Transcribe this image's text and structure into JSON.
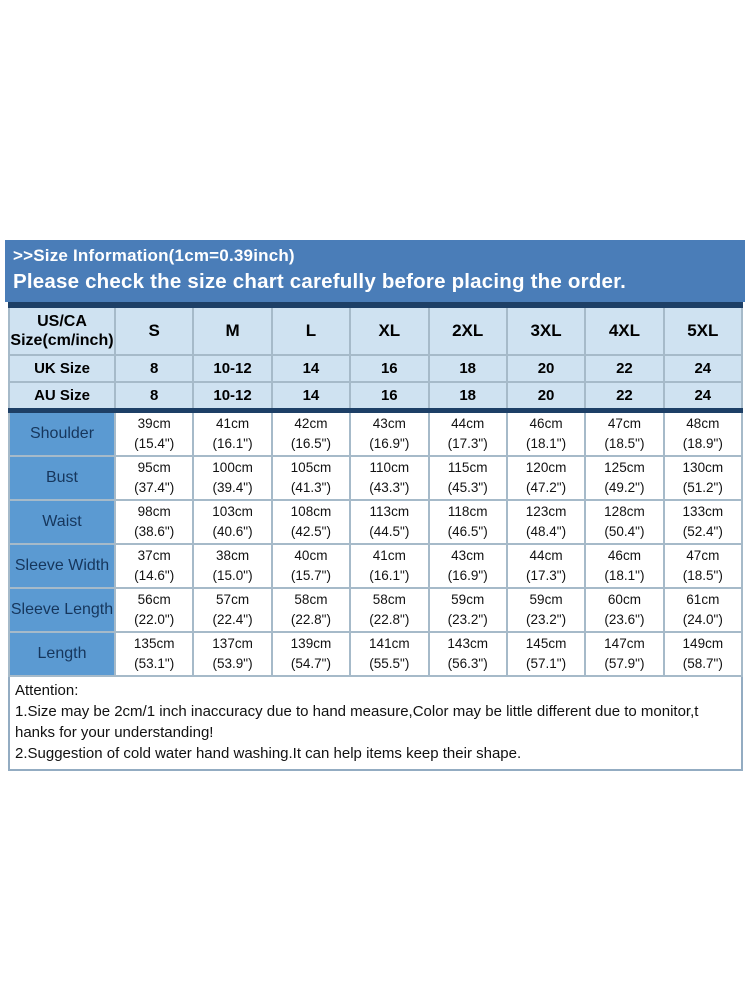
{
  "header": {
    "line1": ">>Size Information(1cm=0.39inch)",
    "line2": "Please check the size chart carefully before placing the order."
  },
  "size_table": {
    "corner_label_line1": "US/CA",
    "corner_label_line2": "Size(cm/inch)",
    "size_columns": [
      "S",
      "M",
      "L",
      "XL",
      "2XL",
      "3XL",
      "4XL",
      "5XL"
    ],
    "conversion_rows": [
      {
        "label": "UK Size",
        "values": [
          "8",
          "10-12",
          "14",
          "16",
          "18",
          "20",
          "22",
          "24"
        ]
      },
      {
        "label": "AU Size",
        "values": [
          "8",
          "10-12",
          "14",
          "16",
          "18",
          "20",
          "22",
          "24"
        ]
      }
    ],
    "measurement_rows": [
      {
        "label": "Shoulder",
        "cm": [
          "39cm",
          "41cm",
          "42cm",
          "43cm",
          "44cm",
          "46cm",
          "47cm",
          "48cm"
        ],
        "inch": [
          "(15.4\")",
          "(16.1\")",
          "(16.5\")",
          "(16.9\")",
          "(17.3\")",
          "(18.1\")",
          "(18.5\")",
          "(18.9\")"
        ]
      },
      {
        "label": "Bust",
        "cm": [
          "95cm",
          "100cm",
          "105cm",
          "110cm",
          "115cm",
          "120cm",
          "125cm",
          "130cm"
        ],
        "inch": [
          "(37.4\")",
          "(39.4\")",
          "(41.3\")",
          "(43.3\")",
          "(45.3\")",
          "(47.2\")",
          "(49.2\")",
          "(51.2\")"
        ]
      },
      {
        "label": "Waist",
        "cm": [
          "98cm",
          "103cm",
          "108cm",
          "113cm",
          "118cm",
          "123cm",
          "128cm",
          "133cm"
        ],
        "inch": [
          "(38.6\")",
          "(40.6\")",
          "(42.5\")",
          "(44.5\")",
          "(46.5\")",
          "(48.4\")",
          "(50.4\")",
          "(52.4\")"
        ]
      },
      {
        "label": "Sleeve Width",
        "cm": [
          "37cm",
          "38cm",
          "40cm",
          "41cm",
          "43cm",
          "44cm",
          "46cm",
          "47cm"
        ],
        "inch": [
          "(14.6\")",
          "(15.0\")",
          "(15.7\")",
          "(16.1\")",
          "(16.9\")",
          "(17.3\")",
          "(18.1\")",
          "(18.5\")"
        ]
      },
      {
        "label": "Sleeve Length",
        "cm": [
          "56cm",
          "57cm",
          "58cm",
          "58cm",
          "59cm",
          "59cm",
          "60cm",
          "61cm"
        ],
        "inch": [
          "(22.0\")",
          "(22.4\")",
          "(22.8\")",
          "(22.8\")",
          "(23.2\")",
          "(23.2\")",
          "(23.6\")",
          "(24.0\")"
        ]
      },
      {
        "label": "Length",
        "cm": [
          "135cm",
          "137cm",
          "139cm",
          "141cm",
          "143cm",
          "145cm",
          "147cm",
          "149cm"
        ],
        "inch": [
          "(53.1\")",
          "(53.9\")",
          "(54.7\")",
          "(55.5\")",
          "(56.3\")",
          "(57.1\")",
          "(57.9\")",
          "(58.7\")"
        ]
      }
    ]
  },
  "attention": {
    "lines": [
      "Attention:",
      "1.Size may be 2cm/1 inch inaccuracy due to hand measure,Color may be little different due to monitor,t",
      "hanks for your understanding!",
      "2.Suggestion of cold water hand washing.It can help items keep their shape."
    ]
  },
  "colors": {
    "banner_bg": "#4a7db8",
    "banner_text": "#ffffff",
    "header_cell_bg": "#cfe2f1",
    "measurement_label_bg": "#5b9ad2",
    "measurement_label_text": "#16365c",
    "thick_rule": "#1d3f66",
    "grid_border": "#a6bac9",
    "outer_border": "#7f9ab3"
  }
}
